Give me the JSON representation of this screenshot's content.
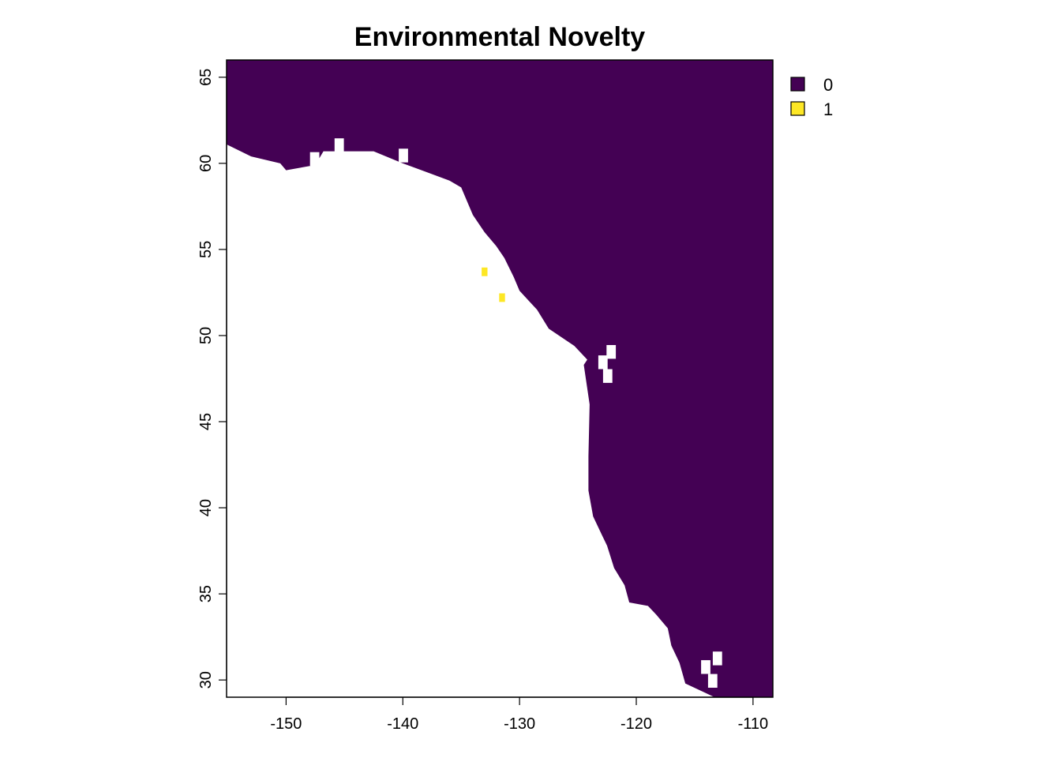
{
  "chart_data": {
    "type": "heatmap",
    "title": "Environmental Novelty",
    "xlabel": "",
    "ylabel": "",
    "xlim": [
      -155.1,
      -108.3
    ],
    "ylim": [
      29.0,
      66.0
    ],
    "x_ticks": [
      "-150",
      "-140",
      "-130",
      "-120",
      "-110"
    ],
    "y_ticks": [
      "30",
      "35",
      "40",
      "45",
      "50",
      "55",
      "60",
      "65"
    ],
    "legend": {
      "placement": "top-right",
      "entries": [
        {
          "label": "0",
          "color": "#440154"
        },
        {
          "label": "1",
          "color": "#FDE725"
        }
      ]
    },
    "cell_size_deg": 0.5,
    "background_value": 0,
    "no_data_color": "#ffffff",
    "coastline_lat_lon_boundary": [
      [
        66.0,
        -155.1
      ],
      [
        61.1,
        -155.1
      ],
      [
        60.4,
        -153.0
      ],
      [
        60.0,
        -150.5
      ],
      [
        59.6,
        -150.0
      ],
      [
        59.9,
        -147.5
      ],
      [
        60.7,
        -146.8
      ],
      [
        60.7,
        -142.5
      ],
      [
        60.0,
        -140.0
      ],
      [
        59.5,
        -138.0
      ],
      [
        59.0,
        -136.0
      ],
      [
        58.6,
        -135.0
      ],
      [
        57.0,
        -134.0
      ],
      [
        56.0,
        -133.0
      ],
      [
        55.2,
        -132.0
      ],
      [
        54.5,
        -131.3
      ],
      [
        53.4,
        -130.5
      ],
      [
        52.6,
        -130.0
      ],
      [
        51.5,
        -128.5
      ],
      [
        50.4,
        -127.5
      ],
      [
        49.4,
        -125.3
      ],
      [
        48.6,
        -124.2
      ],
      [
        48.3,
        -124.5
      ],
      [
        46.0,
        -124.0
      ],
      [
        43.0,
        -124.1
      ],
      [
        41.0,
        -124.1
      ],
      [
        39.5,
        -123.7
      ],
      [
        38.5,
        -123.0
      ],
      [
        37.8,
        -122.5
      ],
      [
        36.5,
        -121.9
      ],
      [
        35.5,
        -121.0
      ],
      [
        34.5,
        -120.6
      ],
      [
        34.3,
        -119.0
      ],
      [
        33.8,
        -118.3
      ],
      [
        33.0,
        -117.3
      ],
      [
        32.0,
        -117.0
      ],
      [
        31.0,
        -116.3
      ],
      [
        29.8,
        -115.8
      ],
      [
        29.0,
        -113.3
      ],
      [
        29.0,
        -108.3
      ],
      [
        66.0,
        -108.3
      ]
    ],
    "missing_cells_inland": [
      [
        30.9,
        -114.2
      ],
      [
        30.1,
        -113.6
      ],
      [
        31.4,
        -113.2
      ],
      [
        60.4,
        -147.7
      ],
      [
        61.2,
        -145.6
      ],
      [
        60.6,
        -140.1
      ],
      [
        49.2,
        -122.3
      ],
      [
        48.6,
        -123.0
      ],
      [
        47.8,
        -122.6
      ]
    ],
    "value_one_cells": [
      [
        53.7,
        -133.0
      ],
      [
        52.2,
        -131.5
      ]
    ]
  }
}
